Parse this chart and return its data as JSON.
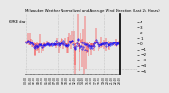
{
  "title": "Milwaukee Weather Normalized and Average Wind Direction (Last 24 Hours)",
  "subtitle": "KMKE dew",
  "bg_color": "#e8e8e8",
  "plot_bg": "#e8e8e8",
  "grid_color": "#999999",
  "red_color": "#ff0000",
  "blue_color": "#0000ff",
  "n_points": 144,
  "ylim": [
    -5.5,
    5.5
  ],
  "yticks": [
    -5,
    -4,
    -3,
    -2,
    -1,
    0,
    1,
    2,
    3,
    4
  ],
  "right_panel_blank": true,
  "seed": 42
}
